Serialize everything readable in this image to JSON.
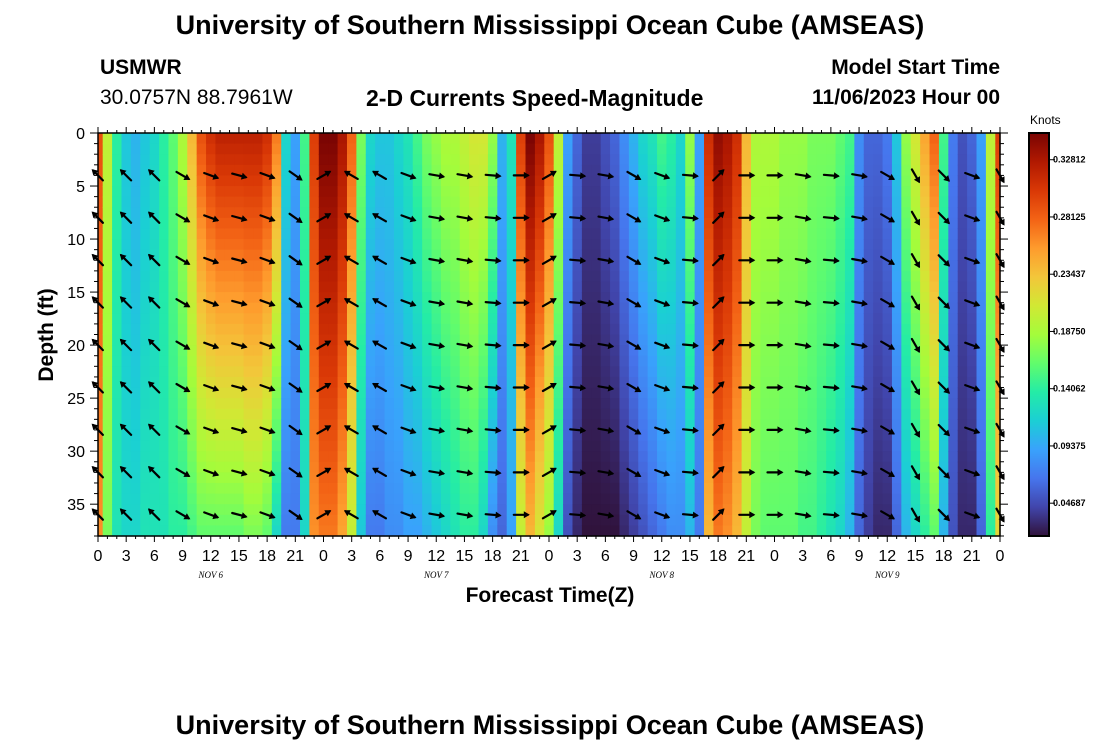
{
  "header": {
    "title": "University of Southern Mississippi Ocean Cube (AMSEAS)",
    "station": "USMWR",
    "coords": "30.0757N  88.7961W",
    "plot_title": "2-D Currents Speed-Magnitude",
    "model_start_label": "Model Start Time",
    "model_start_value": "11/06/2023 Hour 00"
  },
  "footer": {
    "title": "University of Southern Mississippi Ocean Cube (AMSEAS)"
  },
  "colors": {
    "scale": [
      "#30123b",
      "#4145ab",
      "#4675ed",
      "#39a2fc",
      "#1bcfd4",
      "#24eca6",
      "#61fc6c",
      "#a4fc3b",
      "#d1e834",
      "#f3c63a",
      "#fe9b2d",
      "#f36315",
      "#d93806",
      "#b11901",
      "#7a0403"
    ]
  },
  "chart_data": {
    "type": "heatmap",
    "title": "2-D Currents Speed-Magnitude",
    "xlabel": "Forecast Time(Z)",
    "ylabel": "Depth (ft)",
    "x_ticks": [
      "0",
      "3",
      "6",
      "9",
      "12",
      "15",
      "18",
      "21",
      "0",
      "3",
      "6",
      "9",
      "12",
      "15",
      "18",
      "21",
      "0",
      "3",
      "6",
      "9",
      "12",
      "15",
      "18",
      "21",
      "0",
      "3",
      "6",
      "9",
      "12",
      "15",
      "18",
      "21",
      "0"
    ],
    "x_range_hours": [
      0,
      96
    ],
    "day_labels": [
      {
        "label": "NOV  6",
        "hour": 12
      },
      {
        "label": "NOV  7",
        "hour": 36
      },
      {
        "label": "NOV  8",
        "hour": 60
      },
      {
        "label": "NOV  9",
        "hour": 84
      }
    ],
    "y_ticks": [
      0,
      5,
      10,
      15,
      20,
      25,
      30,
      35
    ],
    "ylim": [
      0,
      38
    ],
    "colorbar": {
      "unit": "Knots",
      "vmin": 0.02,
      "vmax": 0.35,
      "tick_values": [
        0.04687,
        0.09375,
        0.14062,
        0.1875,
        0.23437,
        0.28125,
        0.32812
      ],
      "tick_labels": [
        "0.04687",
        "0.09375",
        "0.14062",
        "0.18750",
        "0.23437",
        "0.28125",
        "0.32812"
      ]
    },
    "speed_profile_knots": {
      "hours": [
        0,
        1,
        2,
        3,
        4,
        5,
        6,
        7,
        8,
        9,
        10,
        11,
        12,
        13,
        14,
        15,
        16,
        17,
        18,
        19,
        20,
        21,
        22,
        23,
        24,
        25,
        26,
        27,
        28,
        29,
        30,
        31,
        32,
        33,
        34,
        35,
        36,
        37,
        38,
        39,
        40,
        41,
        42,
        43,
        44,
        45,
        46,
        47,
        48,
        49,
        50,
        51,
        52,
        53,
        54,
        55,
        56,
        57,
        58,
        59,
        60,
        61,
        62,
        63,
        64,
        65,
        66,
        67,
        68,
        69,
        70,
        71,
        72,
        73,
        74,
        75,
        76,
        77,
        78,
        79,
        80,
        81,
        82,
        83,
        84,
        85,
        86,
        87,
        88,
        89,
        90,
        91,
        92,
        93,
        94,
        95,
        96
      ],
      "surface": [
        0.29,
        0.2,
        0.14,
        0.11,
        0.1,
        0.11,
        0.12,
        0.14,
        0.16,
        0.19,
        0.24,
        0.29,
        0.31,
        0.32,
        0.32,
        0.32,
        0.32,
        0.32,
        0.31,
        0.27,
        0.12,
        0.09,
        0.15,
        0.3,
        0.35,
        0.35,
        0.33,
        0.28,
        0.17,
        0.12,
        0.11,
        0.11,
        0.12,
        0.13,
        0.15,
        0.17,
        0.18,
        0.19,
        0.19,
        0.2,
        0.21,
        0.21,
        0.18,
        0.1,
        0.13,
        0.3,
        0.35,
        0.33,
        0.29,
        0.2,
        0.09,
        0.06,
        0.04,
        0.04,
        0.05,
        0.06,
        0.08,
        0.1,
        0.12,
        0.13,
        0.15,
        0.14,
        0.12,
        0.18,
        0.09,
        0.31,
        0.34,
        0.33,
        0.31,
        0.24,
        0.19,
        0.19,
        0.19,
        0.18,
        0.18,
        0.18,
        0.17,
        0.17,
        0.17,
        0.16,
        0.15,
        0.08,
        0.06,
        0.06,
        0.07,
        0.11,
        0.18,
        0.21,
        0.25,
        0.28,
        0.15,
        0.07,
        0.05,
        0.06,
        0.09,
        0.2,
        0.3
      ],
      "bottom": [
        0.26,
        0.17,
        0.13,
        0.12,
        0.12,
        0.13,
        0.13,
        0.13,
        0.14,
        0.14,
        0.15,
        0.16,
        0.16,
        0.16,
        0.16,
        0.16,
        0.17,
        0.17,
        0.16,
        0.12,
        0.07,
        0.07,
        0.12,
        0.26,
        0.27,
        0.27,
        0.25,
        0.2,
        0.11,
        0.07,
        0.07,
        0.08,
        0.08,
        0.09,
        0.09,
        0.1,
        0.11,
        0.12,
        0.13,
        0.14,
        0.14,
        0.12,
        0.08,
        0.06,
        0.09,
        0.2,
        0.24,
        0.21,
        0.18,
        0.12,
        0.05,
        0.03,
        0.02,
        0.02,
        0.02,
        0.02,
        0.03,
        0.04,
        0.05,
        0.06,
        0.07,
        0.08,
        0.08,
        0.1,
        0.07,
        0.24,
        0.27,
        0.26,
        0.24,
        0.2,
        0.17,
        0.16,
        0.16,
        0.16,
        0.16,
        0.15,
        0.15,
        0.14,
        0.13,
        0.12,
        0.1,
        0.06,
        0.04,
        0.03,
        0.03,
        0.06,
        0.1,
        0.12,
        0.14,
        0.16,
        0.1,
        0.05,
        0.03,
        0.03,
        0.06,
        0.14,
        0.22
      ]
    },
    "vectors": {
      "hours": [
        0,
        3,
        6,
        9,
        12,
        15,
        18,
        21,
        24,
        27,
        30,
        33,
        36,
        39,
        42,
        45,
        48,
        51,
        54,
        57,
        60,
        63,
        66,
        69,
        72,
        75,
        78,
        81,
        84,
        87,
        90,
        93,
        96
      ],
      "depths_ft": [
        4,
        8,
        12,
        16,
        20,
        24,
        28,
        32,
        36
      ],
      "direction_deg": [
        315,
        315,
        315,
        120,
        110,
        105,
        110,
        125,
        60,
        300,
        300,
        110,
        100,
        100,
        95,
        90,
        60,
        95,
        100,
        120,
        110,
        95,
        45,
        90,
        90,
        100,
        95,
        100,
        120,
        150,
        135,
        110,
        150
      ]
    }
  }
}
